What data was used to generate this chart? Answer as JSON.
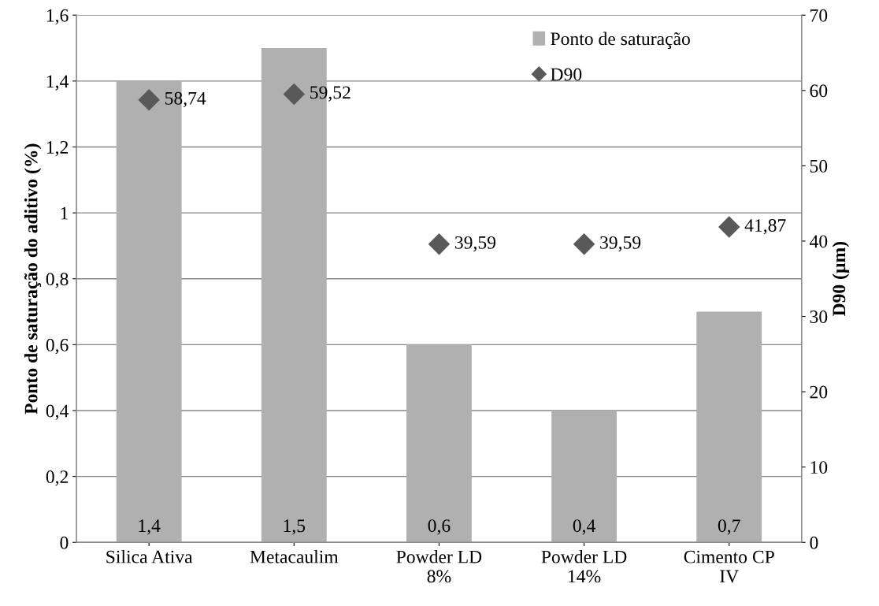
{
  "chart_data": {
    "type": "bar",
    "ylabel": "Ponto de saturação do aditivo (%)",
    "y2label": "D90 (µm)",
    "categories": [
      "Silica Ativa",
      "Metacaulim",
      "Powder LD\n8%",
      "Powder LD\n14%",
      "Cimento CP\nIV"
    ],
    "series": [
      {
        "name": "Ponto de saturação",
        "color": "#b0b0b0",
        "values": [
          1.4,
          1.5,
          0.6,
          0.4,
          0.7
        ],
        "value_labels": [
          "1,4",
          "1,5",
          "0,6",
          "0,4",
          "0,7"
        ]
      },
      {
        "name": "D90",
        "type": "scatter",
        "axis": "y2",
        "marker": "diamond",
        "color": "#595959",
        "values": [
          58.74,
          59.52,
          39.59,
          39.59,
          41.87
        ],
        "value_labels": [
          "58,74",
          "59,52",
          "39,59",
          "39,59",
          "41,87"
        ]
      }
    ],
    "ylim": [
      0,
      1.6
    ],
    "yticks": [
      0,
      {
        "value": 0.2,
        "label": "0,2"
      },
      {
        "value": 0.4,
        "label": "0,4"
      },
      {
        "value": 0.6,
        "label": "0,6"
      },
      {
        "value": 0.8,
        "label": "0,8"
      },
      1,
      {
        "value": 1.2,
        "label": "1,2"
      },
      {
        "value": 1.4,
        "label": "1,4"
      },
      {
        "value": 1.6,
        "label": "1,6"
      }
    ],
    "y2lim": [
      0,
      70
    ],
    "y2ticks": [
      0,
      10,
      20,
      30,
      40,
      50,
      60,
      70
    ],
    "grid": "y",
    "legend": "top right"
  }
}
